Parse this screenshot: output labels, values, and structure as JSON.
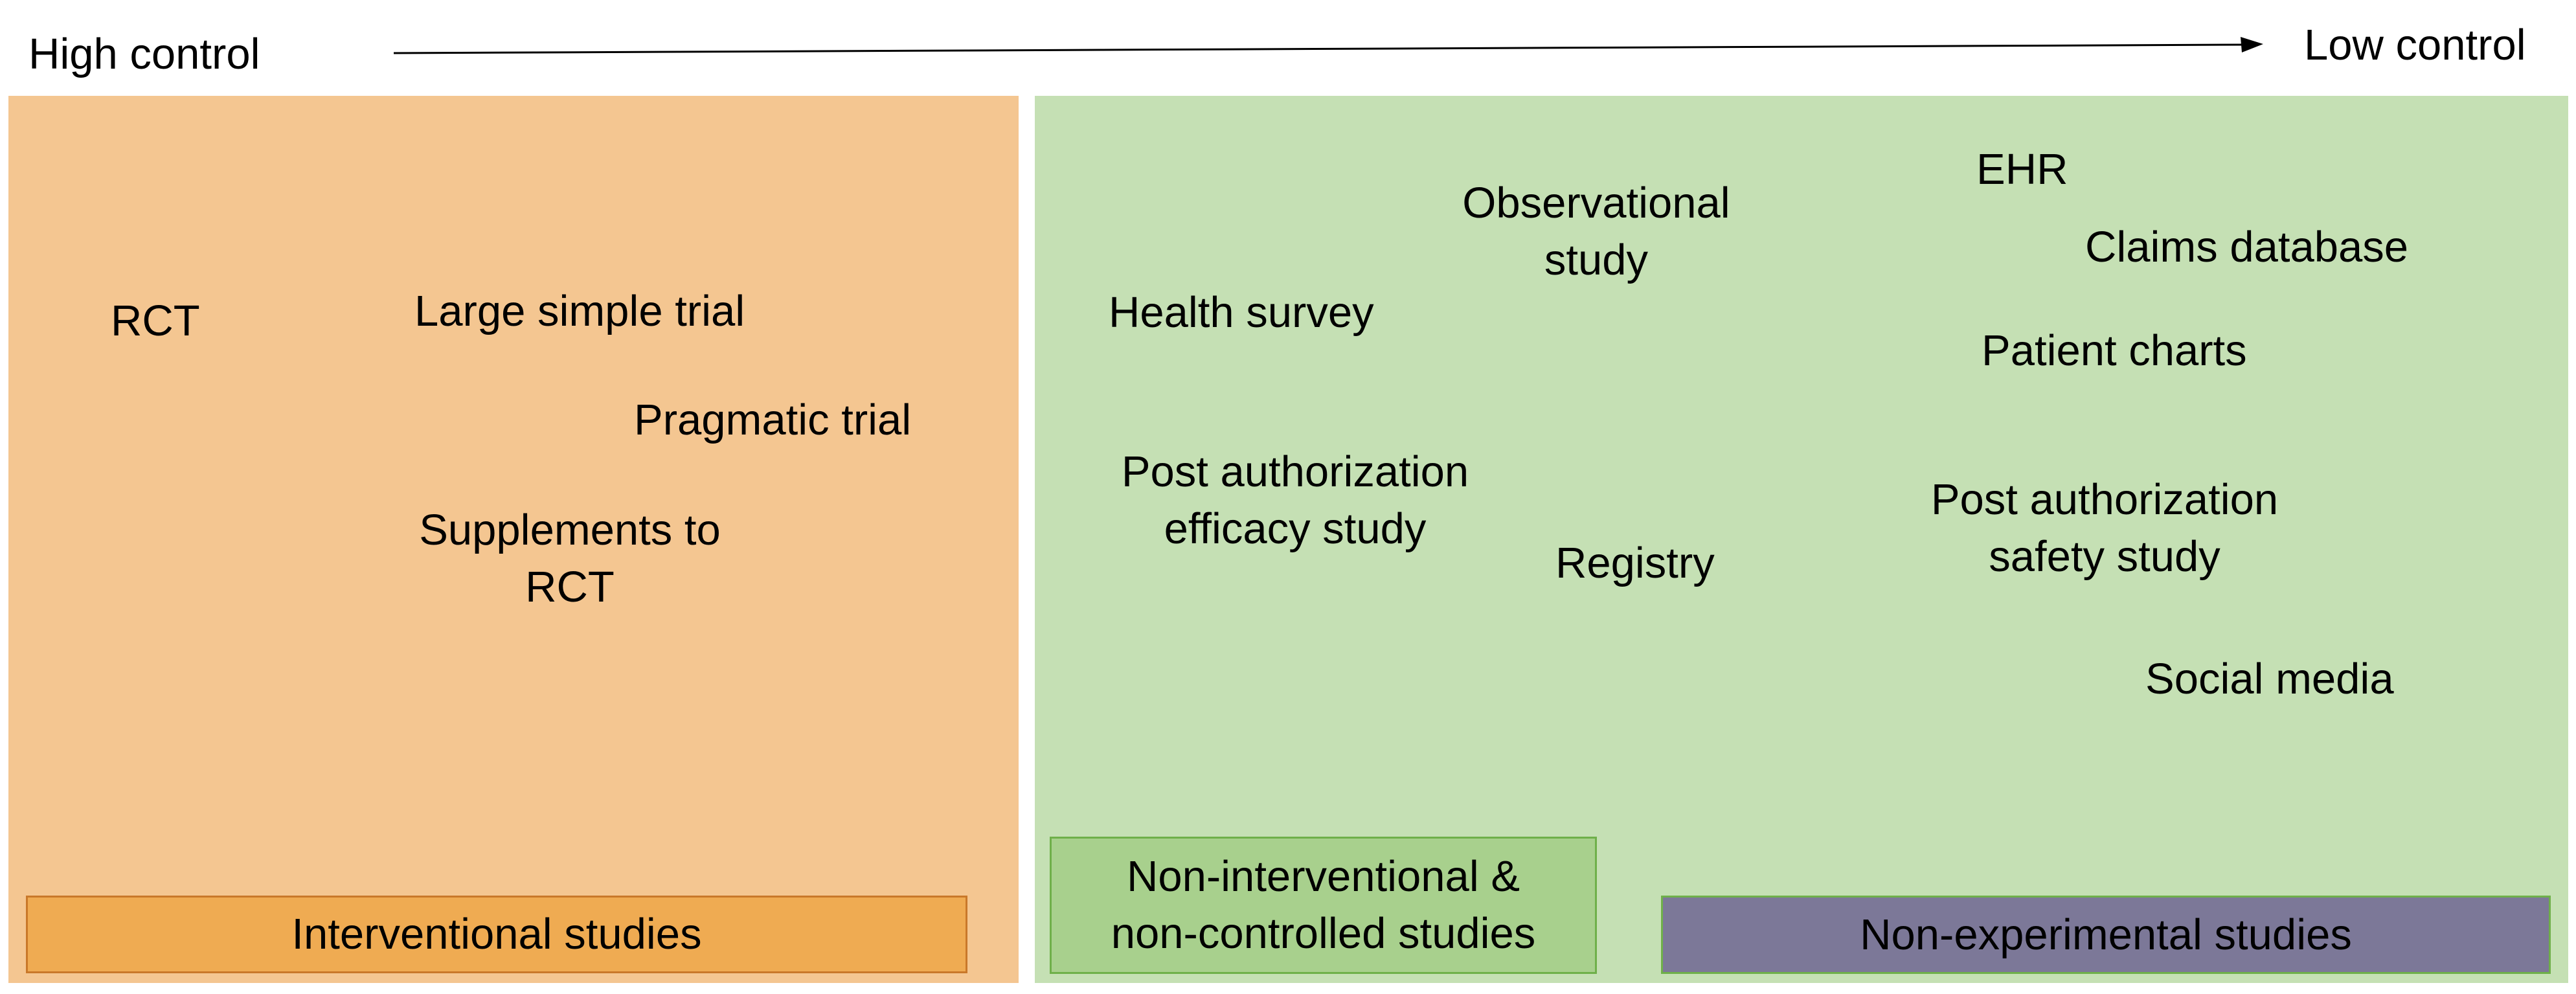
{
  "axis": {
    "left_label": "High control",
    "right_label": "Low control"
  },
  "interventional": {
    "items": {
      "rct": "RCT",
      "large_simple_trial": "Large simple trial",
      "pragmatic_trial": "Pragmatic trial",
      "supplements_line1": "Supplements to",
      "supplements_line2": "RCT"
    },
    "legend": "Interventional studies"
  },
  "noninterventional": {
    "items": {
      "health_survey": "Health survey",
      "observational_line1": "Observational",
      "observational_line2": "study",
      "efficacy_line1": "Post authorization",
      "efficacy_line2": "efficacy study",
      "registry": "Registry",
      "ehr": "EHR",
      "claims_database": "Claims database",
      "patient_charts": "Patient charts",
      "safety_line1": "Post authorization",
      "safety_line2": "safety study",
      "social_media": "Social media"
    },
    "legend_noninterventional_line1": "Non-interventional &",
    "legend_noninterventional_line2": "non-controlled studies",
    "legend_nonexperimental": "Non-experimental studies"
  },
  "colors": {
    "interventional_panel": "#f4c691",
    "interventional_legend": "#efab52",
    "noninterventional_panel": "#c5e0b4",
    "noninterventional_legend": "#a8d08d",
    "nonexperimental_legend": "#7c7898"
  }
}
